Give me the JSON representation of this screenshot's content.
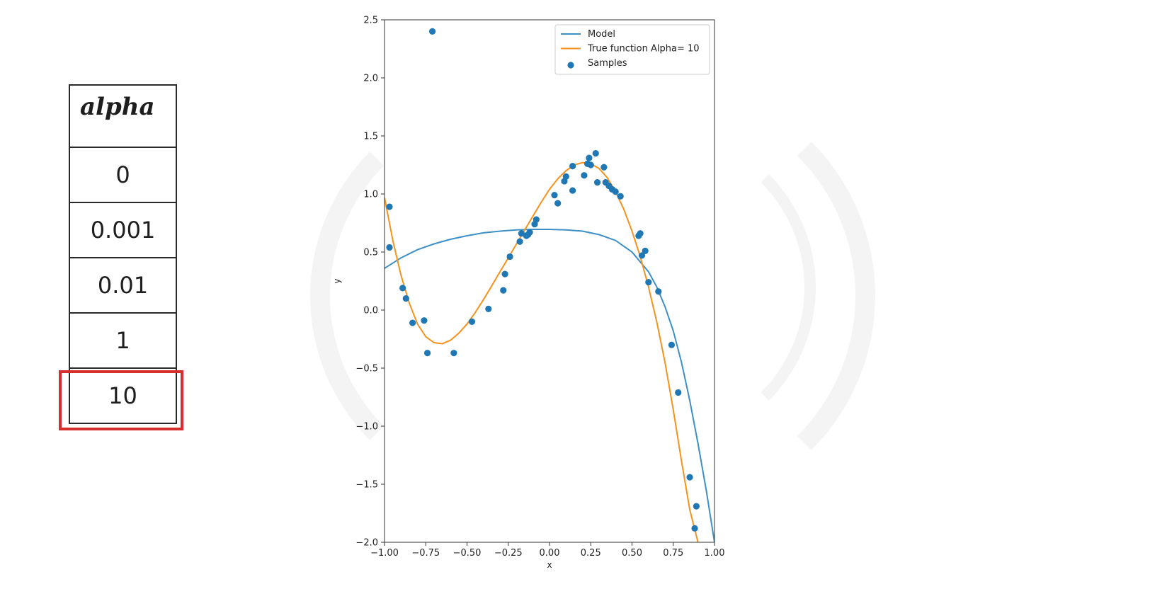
{
  "alpha_table": {
    "header": "alpha",
    "values": [
      "0",
      "0.001",
      "0.01",
      "1",
      "10"
    ],
    "selected_index": 4,
    "highlight_color": "#d62d2d"
  },
  "chart_data": {
    "type": "line",
    "xlabel": "x",
    "ylabel": "y",
    "xlim": [
      -1.0,
      1.0
    ],
    "ylim": [
      -2.0,
      2.5
    ],
    "x_ticks": [
      "-1.00",
      "-0.75",
      "-0.50",
      "-0.25",
      "0.00",
      "0.25",
      "0.50",
      "0.75",
      "1.00"
    ],
    "y_ticks": [
      "-2.0",
      "-1.5",
      "-1.0",
      "-0.5",
      "0.0",
      "0.5",
      "1.0",
      "1.5",
      "2.0",
      "2.5"
    ],
    "legend_position": "top-right",
    "grid": false,
    "series": [
      {
        "name": "Model",
        "color": "#3d8fc6",
        "style": "line",
        "x": [
          -1.0,
          -0.9,
          -0.8,
          -0.7,
          -0.6,
          -0.5,
          -0.4,
          -0.3,
          -0.2,
          -0.1,
          0.0,
          0.1,
          0.2,
          0.3,
          0.4,
          0.5,
          0.6,
          0.65,
          0.7,
          0.75,
          0.8,
          0.85,
          0.9,
          0.95,
          1.0
        ],
        "y": [
          0.36,
          0.45,
          0.52,
          0.57,
          0.61,
          0.64,
          0.665,
          0.68,
          0.69,
          0.695,
          0.695,
          0.69,
          0.68,
          0.65,
          0.6,
          0.5,
          0.33,
          0.2,
          0.03,
          -0.18,
          -0.45,
          -0.78,
          -1.15,
          -1.55,
          -2.0
        ]
      },
      {
        "name": "True function Alpha= 10",
        "color": "#f5921e",
        "style": "line",
        "x": [
          -1.0,
          -0.95,
          -0.9,
          -0.85,
          -0.8,
          -0.75,
          -0.7,
          -0.65,
          -0.6,
          -0.55,
          -0.5,
          -0.45,
          -0.4,
          -0.35,
          -0.3,
          -0.25,
          -0.2,
          -0.15,
          -0.1,
          -0.05,
          0.0,
          0.05,
          0.1,
          0.15,
          0.2,
          0.25,
          0.3,
          0.35,
          0.4,
          0.45,
          0.5,
          0.55,
          0.6,
          0.65,
          0.7,
          0.75,
          0.8,
          0.85,
          0.9
        ],
        "y": [
          0.97,
          0.6,
          0.3,
          0.06,
          -0.12,
          -0.23,
          -0.28,
          -0.29,
          -0.26,
          -0.2,
          -0.12,
          -0.02,
          0.09,
          0.21,
          0.33,
          0.45,
          0.57,
          0.69,
          0.81,
          0.93,
          1.04,
          1.13,
          1.2,
          1.25,
          1.27,
          1.26,
          1.22,
          1.14,
          1.02,
          0.87,
          0.68,
          0.46,
          0.2,
          -0.1,
          -0.45,
          -0.86,
          -1.3,
          -1.72,
          -2.0
        ]
      },
      {
        "name": "Samples",
        "color": "#1f77b4",
        "style": "scatter",
        "x": [
          -0.97,
          -0.97,
          -0.89,
          -0.87,
          -0.83,
          -0.76,
          -0.74,
          -0.71,
          -0.58,
          -0.47,
          -0.37,
          -0.28,
          -0.27,
          -0.24,
          -0.18,
          -0.17,
          -0.14,
          -0.13,
          -0.12,
          -0.09,
          -0.08,
          0.03,
          0.05,
          0.09,
          0.1,
          0.14,
          0.14,
          0.21,
          0.23,
          0.24,
          0.25,
          0.28,
          0.29,
          0.33,
          0.34,
          0.36,
          0.38,
          0.4,
          0.43,
          0.54,
          0.55,
          0.56,
          0.58,
          0.6,
          0.66,
          0.74,
          0.78,
          0.85,
          0.89,
          0.88
        ],
        "y": [
          0.89,
          0.54,
          0.19,
          0.1,
          -0.11,
          -0.09,
          -0.37,
          2.4,
          -0.37,
          -0.1,
          0.01,
          0.17,
          0.31,
          0.46,
          0.59,
          0.66,
          0.64,
          0.65,
          0.67,
          0.74,
          0.78,
          0.99,
          0.92,
          1.11,
          1.15,
          1.03,
          1.24,
          1.16,
          1.26,
          1.31,
          1.25,
          1.35,
          1.1,
          1.23,
          1.1,
          1.07,
          1.04,
          1.02,
          0.98,
          0.64,
          0.66,
          0.47,
          0.51,
          0.24,
          0.16,
          -0.3,
          -0.71,
          -1.44,
          -1.69,
          -1.88
        ]
      }
    ]
  }
}
